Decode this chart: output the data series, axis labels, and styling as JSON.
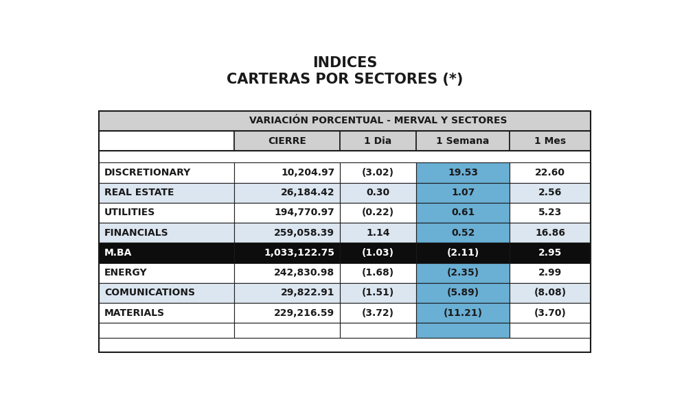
{
  "title_line1": "INDICES",
  "title_line2": "CARTERAS POR SECTORES (*)",
  "header_main": "VARIACIÓN PORCENTUAL - MERVAL Y SECTORES",
  "col_headers": [
    "",
    "CIERRE",
    "1 Dia",
    "1 Semana",
    "1 Mes"
  ],
  "rows": [
    {
      "name": "DISCRETIONARY",
      "cierre": "10,204.97",
      "dia": "(3.02)",
      "semana": "19.53",
      "mes": "22.60",
      "semana_blue": true,
      "mba": false,
      "row_shade": false
    },
    {
      "name": "REAL ESTATE",
      "cierre": "26,184.42",
      "dia": "0.30",
      "semana": "1.07",
      "mes": "2.56",
      "semana_blue": true,
      "mba": false,
      "row_shade": true
    },
    {
      "name": "UTILITIES",
      "cierre": "194,770.97",
      "dia": "(0.22)",
      "semana": "0.61",
      "mes": "5.23",
      "semana_blue": true,
      "mba": false,
      "row_shade": false
    },
    {
      "name": "FINANCIALS",
      "cierre": "259,058.39",
      "dia": "1.14",
      "semana": "0.52",
      "mes": "16.86",
      "semana_blue": true,
      "mba": false,
      "row_shade": true
    },
    {
      "name": "M.BA",
      "cierre": "1,033,122.75",
      "dia": "(1.03)",
      "semana": "(2.11)",
      "mes": "2.95",
      "semana_blue": false,
      "mba": true,
      "row_shade": false
    },
    {
      "name": "ENERGY",
      "cierre": "242,830.98",
      "dia": "(1.68)",
      "semana": "(2.35)",
      "mes": "2.99",
      "semana_blue": true,
      "mba": false,
      "row_shade": false
    },
    {
      "name": "COMUNICATIONS",
      "cierre": "29,822.91",
      "dia": "(1.51)",
      "semana": "(5.89)",
      "mes": "(8.08)",
      "semana_blue": true,
      "mba": false,
      "row_shade": true
    },
    {
      "name": "MATERIALS",
      "cierre": "229,216.59",
      "dia": "(3.72)",
      "semana": "(11.21)",
      "mes": "(3.70)",
      "semana_blue": true,
      "mba": false,
      "row_shade": false
    }
  ],
  "color_header_bg": "#d0d0d0",
  "color_col_header_bg": "#d0d0d0",
  "color_row_shade": "#dce6f1",
  "color_row_plain": "#ffffff",
  "color_mba_bg": "#0d0d0d",
  "color_mba_text": "#ffffff",
  "color_semana_blue": "#6aafd4",
  "color_semana_mba": "#0d0d0d",
  "color_border_dark": "#1a1a1a",
  "color_border_light": "#999999",
  "color_title": "#1a1a1a",
  "color_bottom_blue": "#6aafd4",
  "title_fontsize": 15,
  "header_fontsize": 10,
  "col_header_fontsize": 10,
  "data_fontsize": 10
}
